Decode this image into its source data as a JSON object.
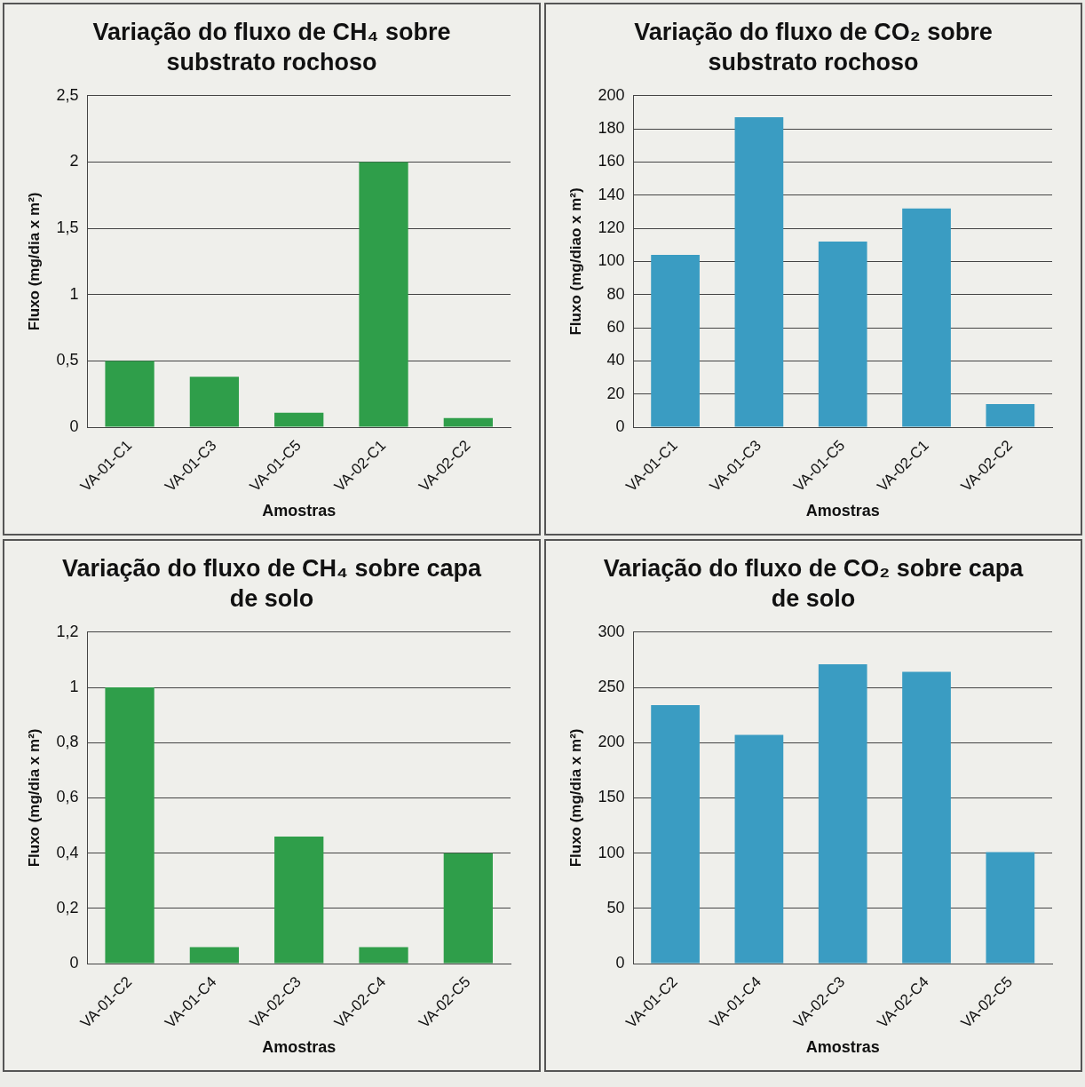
{
  "chart_data": [
    {
      "type": "bar",
      "title": "Variação do fluxo de CH₄ sobre substrato rochoso",
      "xlabel": "Amostras",
      "ylabel": "Fluxo (mg/dia x m²)",
      "categories": [
        "VA-01-C1",
        "VA-01-C3",
        "VA-01-C5",
        "VA-02-C1",
        "VA-02-C2"
      ],
      "values": [
        0.5,
        0.38,
        0.11,
        2.0,
        0.07
      ],
      "color": "#2f9e4a",
      "ylim": [
        0,
        2.5
      ],
      "yticks": [
        0,
        {
          "value": 0.5,
          "label": "0,5"
        },
        1,
        {
          "value": 1.5,
          "label": "1,5"
        },
        2,
        {
          "value": 2.5,
          "label": "2,5"
        }
      ],
      "grid": "y"
    },
    {
      "type": "bar",
      "title": "Variação do fluxo de CO₂ sobre substrato rochoso",
      "xlabel": "Amostras",
      "ylabel": "Fluxo (mg/diao x m²)",
      "categories": [
        "VA-01-C1",
        "VA-01-C3",
        "VA-01-C5",
        "VA-02-C1",
        "VA-02-C2"
      ],
      "values": [
        104,
        187,
        112,
        132,
        14
      ],
      "color": "#3a9cc2",
      "ylim": [
        0,
        200
      ],
      "yticks": [
        0,
        20,
        40,
        60,
        80,
        100,
        120,
        140,
        160,
        180,
        200
      ],
      "grid": "y"
    },
    {
      "type": "bar",
      "title": "Variação do fluxo de CH₄ sobre capa de solo",
      "xlabel": "Amostras",
      "ylabel": "Fluxo (mg/dia x m²)",
      "categories": [
        "VA-01-C2",
        "VA-01-C4",
        "VA-02-C3",
        "VA-02-C4",
        "VA-02-C5"
      ],
      "values": [
        1.0,
        0.06,
        0.46,
        0.06,
        0.4
      ],
      "color": "#2f9e4a",
      "ylim": [
        0,
        1.2
      ],
      "yticks": [
        0,
        {
          "value": 0.2,
          "label": "0,2"
        },
        {
          "value": 0.4,
          "label": "0,4"
        },
        {
          "value": 0.6,
          "label": "0,6"
        },
        {
          "value": 0.8,
          "label": "0,8"
        },
        1,
        {
          "value": 1.2,
          "label": "1,2"
        }
      ],
      "grid": "y"
    },
    {
      "type": "bar",
      "title": "Variação do fluxo de CO₂ sobre capa de solo",
      "xlabel": "Amostras",
      "ylabel": "Fluxo (mg/dia x m²)",
      "categories": [
        "VA-01-C2",
        "VA-01-C4",
        "VA-02-C3",
        "VA-02-C4",
        "VA-02-C5"
      ],
      "values": [
        234,
        207,
        271,
        264,
        101
      ],
      "color": "#3a9cc2",
      "ylim": [
        0,
        300
      ],
      "yticks": [
        0,
        50,
        100,
        150,
        200,
        250,
        300
      ],
      "grid": "y"
    }
  ]
}
